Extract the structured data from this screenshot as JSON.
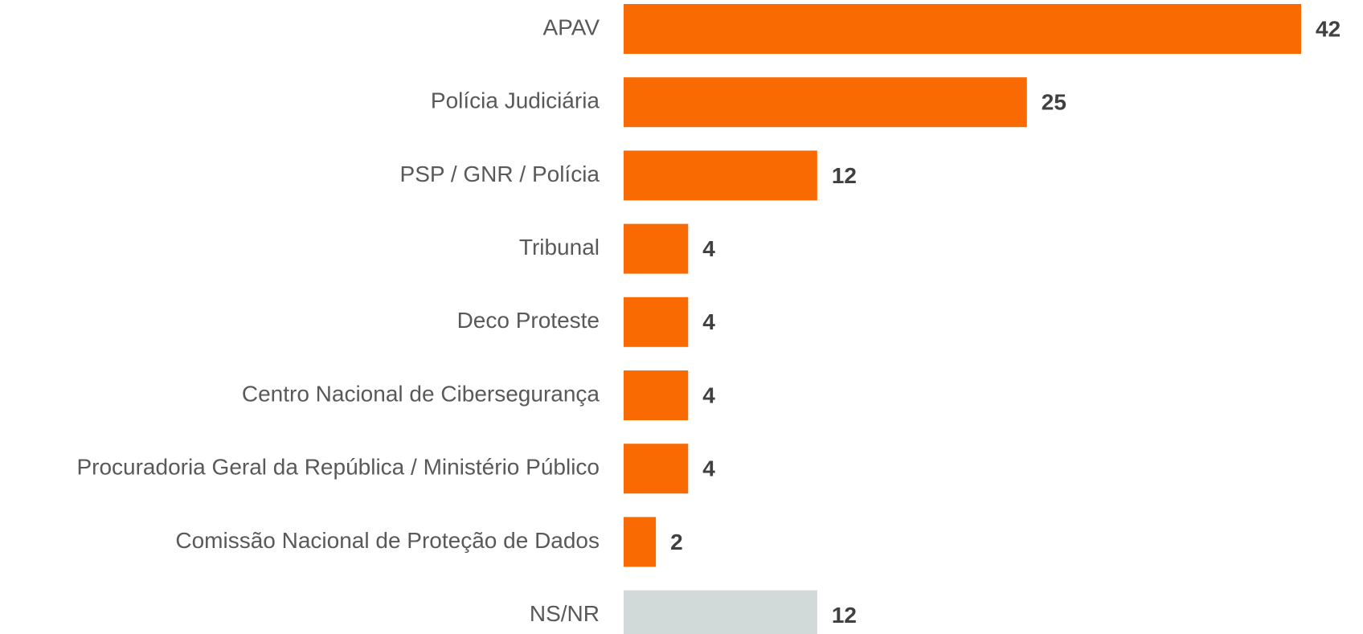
{
  "chart_data": {
    "type": "bar",
    "orientation": "horizontal",
    "categories": [
      "APAV",
      "Polícia Judiciária",
      "PSP / GNR / Polícia",
      "Tribunal",
      "Deco Proteste",
      "Centro Nacional de Cibersegurança",
      "Procuradoria Geral da República / Ministério Público",
      "Comissão Nacional de Proteção de Dados",
      "NS/NR"
    ],
    "values": [
      42,
      25,
      12,
      4,
      4,
      4,
      4,
      2,
      12
    ],
    "colors": [
      "#fa6a03",
      "#fa6a03",
      "#fa6a03",
      "#fa6a03",
      "#fa6a03",
      "#fa6a03",
      "#fa6a03",
      "#fa6a03",
      "#d1d9d9"
    ]
  }
}
